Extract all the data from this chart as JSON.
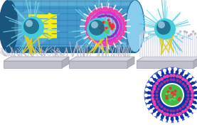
{
  "tube_color_main": "#4499cc",
  "tube_color_dark": "#1a5580",
  "tube_color_light": "#6bbde0",
  "tube_color_edge": "#2277aa",
  "tube_grid": "#2a6699",
  "arrow_color": "#ffee00",
  "vesicle_pink": "#ee44aa",
  "vesicle_purple": "#8833bb",
  "vesicle_inner_bg": "#5544aa",
  "vesicle_green": "#44cc66",
  "vesicle_red": "#ee3333",
  "vesicle_magenta": "#dd33cc",
  "inset_bg": "#1133aa",
  "inset_white_ring": "#ffffff",
  "inset_pink": "#ee44aa",
  "inset_purple": "#993399",
  "inset_green": "#44bb44",
  "inset_red": "#ee3333",
  "sphere_teal": "#44ccdd",
  "sphere_mid": "#3399bb",
  "sphere_dark": "#1e6688",
  "sphere_shine": "#aaeeff",
  "spike_color": "#77ddee",
  "spike_color2": "#55bbcc",
  "yellow_spike": "#ddcc33",
  "platform_top": "#d8d8e0",
  "platform_front": "#c0c0cc",
  "platform_right": "#b0b0bb",
  "platform_edge": "#999aaa",
  "receptor_gray": "#bbbbcc",
  "receptor_light": "#ddddee"
}
